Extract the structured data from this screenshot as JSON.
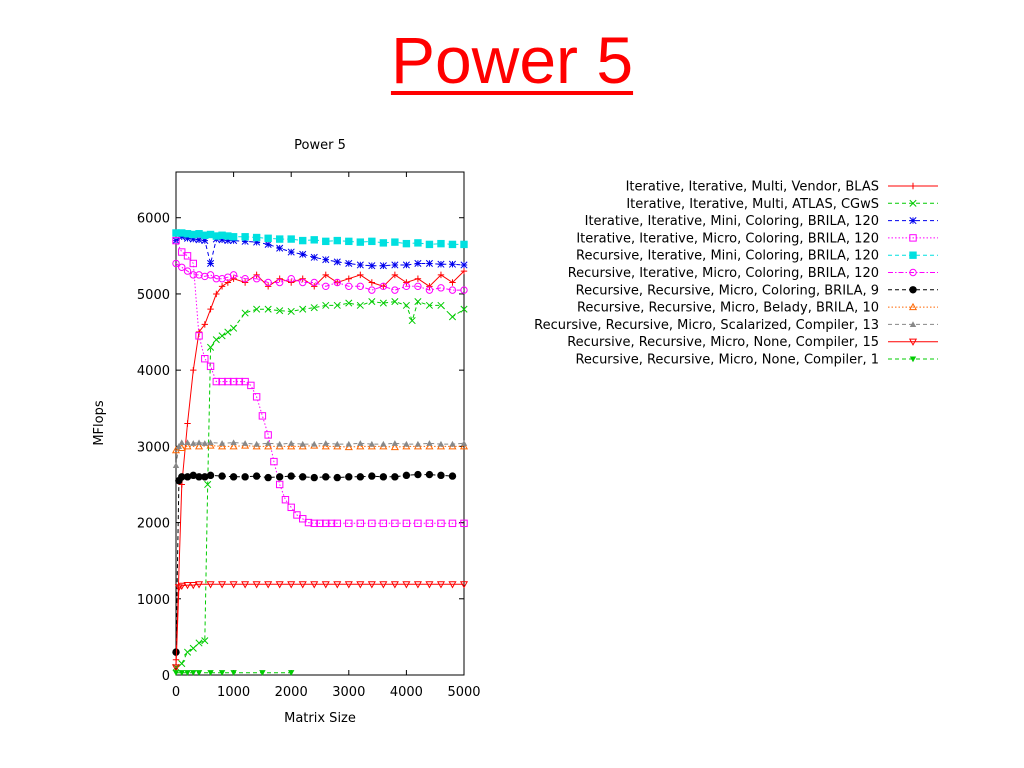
{
  "slide": {
    "title": "Power 5"
  },
  "chart_data": {
    "type": "line",
    "title": "Power 5",
    "xlabel": "Matrix Size",
    "ylabel": "MFlops",
    "xlim": [
      0,
      5000
    ],
    "ylim": [
      0,
      6600
    ],
    "xticks": [
      0,
      1000,
      2000,
      3000,
      4000,
      5000
    ],
    "yticks": [
      0,
      1000,
      2000,
      3000,
      4000,
      5000,
      6000
    ],
    "legend_position": "right, outside plot",
    "grid": false,
    "series": [
      {
        "name": "Iterative, Iterative, Multi, Vendor, BLAS",
        "color": "#ff0000",
        "marker": "plus",
        "dash": "solid",
        "x": [
          0,
          100,
          200,
          300,
          400,
          500,
          600,
          700,
          800,
          900,
          1000,
          1200,
          1400,
          1600,
          1800,
          2000,
          2200,
          2400,
          2600,
          2800,
          3000,
          3200,
          3400,
          3600,
          3800,
          4000,
          4200,
          4400,
          4600,
          4800,
          5000
        ],
        "y": [
          200,
          2500,
          3300,
          4000,
          4500,
          4600,
          4800,
          5000,
          5100,
          5150,
          5200,
          5150,
          5250,
          5100,
          5200,
          5150,
          5200,
          5100,
          5250,
          5150,
          5200,
          5250,
          5150,
          5100,
          5250,
          5150,
          5200,
          5100,
          5250,
          5150,
          5300
        ]
      },
      {
        "name": "Iterative, Iterative, Multi, ATLAS, CGwS",
        "color": "#00cc00",
        "marker": "x",
        "dash": "dashed",
        "x": [
          0,
          100,
          200,
          300,
          400,
          500,
          550,
          600,
          700,
          800,
          900,
          1000,
          1200,
          1400,
          1600,
          1800,
          2000,
          2200,
          2400,
          2600,
          2800,
          3000,
          3200,
          3400,
          3600,
          3800,
          4000,
          4100,
          4200,
          4400,
          4600,
          4800,
          5000
        ],
        "y": [
          100,
          150,
          300,
          350,
          420,
          450,
          2500,
          4300,
          4400,
          4450,
          4500,
          4550,
          4750,
          4800,
          4800,
          4780,
          4770,
          4800,
          4820,
          4850,
          4850,
          4880,
          4850,
          4900,
          4880,
          4900,
          4850,
          4650,
          4900,
          4850,
          4850,
          4700,
          4800
        ]
      },
      {
        "name": "Iterative, Iterative, Mini, Coloring, BRILA, 120",
        "color": "#0000ee",
        "marker": "star",
        "dash": "dashed",
        "x": [
          0,
          100,
          200,
          300,
          400,
          500,
          600,
          700,
          800,
          900,
          1000,
          1200,
          1400,
          1600,
          1800,
          2000,
          2200,
          2400,
          2600,
          2800,
          3000,
          3200,
          3400,
          3600,
          3800,
          4000,
          4200,
          4400,
          4600,
          4800,
          5000
        ],
        "y": [
          5700,
          5750,
          5730,
          5720,
          5710,
          5700,
          5400,
          5720,
          5710,
          5700,
          5700,
          5690,
          5680,
          5650,
          5600,
          5550,
          5520,
          5480,
          5450,
          5420,
          5400,
          5380,
          5370,
          5370,
          5380,
          5380,
          5400,
          5400,
          5390,
          5390,
          5380
        ]
      },
      {
        "name": "Iterative, Iterative, Micro, Coloring, BRILA, 120",
        "color": "#ff00ff",
        "marker": "square",
        "dash": "dotted",
        "x": [
          0,
          100,
          200,
          300,
          400,
          500,
          600,
          700,
          800,
          900,
          1000,
          1100,
          1200,
          1300,
          1400,
          1500,
          1600,
          1700,
          1800,
          1900,
          2000,
          2100,
          2200,
          2300,
          2400,
          2500,
          2600,
          2700,
          2800,
          3000,
          3200,
          3400,
          3600,
          3800,
          4000,
          4200,
          4400,
          4600,
          4800,
          5000
        ],
        "y": [
          5700,
          5550,
          5500,
          5400,
          4450,
          4150,
          4050,
          3850,
          3850,
          3850,
          3850,
          3850,
          3850,
          3800,
          3650,
          3400,
          3150,
          2800,
          2500,
          2300,
          2200,
          2100,
          2050,
          2000,
          1990,
          1990,
          1990,
          1990,
          1990,
          1990,
          1990,
          1990,
          1990,
          1990,
          1990,
          1990,
          1990,
          1990,
          1990,
          1990
        ]
      },
      {
        "name": "Recursive, Iterative, Mini, Coloring, BRILA, 120",
        "color": "#00e0e0",
        "marker": "filled-square",
        "dash": "dashed",
        "x": [
          0,
          100,
          200,
          300,
          400,
          500,
          600,
          700,
          800,
          900,
          1000,
          1200,
          1400,
          1600,
          1800,
          2000,
          2200,
          2400,
          2600,
          2800,
          3000,
          3200,
          3400,
          3600,
          3800,
          4000,
          4200,
          4400,
          4600,
          4800,
          5000
        ],
        "y": [
          5800,
          5800,
          5790,
          5780,
          5790,
          5770,
          5780,
          5760,
          5770,
          5760,
          5750,
          5750,
          5740,
          5730,
          5720,
          5720,
          5700,
          5710,
          5690,
          5700,
          5690,
          5680,
          5690,
          5670,
          5680,
          5660,
          5670,
          5650,
          5660,
          5650,
          5650
        ]
      },
      {
        "name": "Recursive, Iterative, Micro, Coloring, BRILA, 120",
        "color": "#ff00ff",
        "marker": "circle",
        "dash": "dashdot",
        "x": [
          0,
          100,
          200,
          300,
          400,
          500,
          600,
          700,
          800,
          900,
          1000,
          1200,
          1400,
          1600,
          1800,
          2000,
          2200,
          2400,
          2600,
          2800,
          3000,
          3200,
          3400,
          3600,
          3800,
          4000,
          4200,
          4400,
          4600,
          4800,
          5000
        ],
        "y": [
          5400,
          5350,
          5300,
          5250,
          5250,
          5230,
          5250,
          5200,
          5200,
          5220,
          5250,
          5200,
          5200,
          5150,
          5150,
          5200,
          5150,
          5150,
          5100,
          5150,
          5100,
          5100,
          5050,
          5100,
          5050,
          5100,
          5100,
          5050,
          5080,
          5050,
          5050
        ]
      },
      {
        "name": "Recursive, Recursive, Micro, Coloring, BRILA, 9",
        "color": "#000000",
        "marker": "filled-circle",
        "dash": "dashed",
        "x": [
          0,
          50,
          100,
          200,
          300,
          400,
          500,
          600,
          800,
          1000,
          1200,
          1400,
          1600,
          1800,
          2000,
          2200,
          2400,
          2600,
          2800,
          3000,
          3200,
          3400,
          3600,
          3800,
          4000,
          4200,
          4400,
          4600,
          4800
        ],
        "y": [
          300,
          2550,
          2600,
          2600,
          2620,
          2600,
          2600,
          2620,
          2610,
          2600,
          2600,
          2610,
          2590,
          2600,
          2610,
          2600,
          2590,
          2600,
          2590,
          2600,
          2600,
          2610,
          2600,
          2600,
          2620,
          2630,
          2630,
          2620,
          2610
        ]
      },
      {
        "name": "Recursive, Recursive, Micro, Belady, BRILA, 10",
        "color": "#ff6600",
        "marker": "triangle",
        "dash": "dotted",
        "x": [
          0,
          100,
          200,
          400,
          600,
          800,
          1000,
          1200,
          1400,
          1600,
          1800,
          2000,
          2200,
          2400,
          2600,
          2800,
          3000,
          3200,
          3400,
          3600,
          3800,
          4000,
          4200,
          4400,
          4600,
          4800,
          5000
        ],
        "y": [
          2950,
          2980,
          3000,
          3000,
          3010,
          3000,
          3000,
          3010,
          3000,
          3000,
          3000,
          3000,
          3000,
          3010,
          3000,
          3000,
          2990,
          3000,
          3000,
          3000,
          2990,
          3000,
          3000,
          3000,
          3000,
          3000,
          3000
        ]
      },
      {
        "name": "Recursive, Recursive, Micro, Scalarized, Compiler, 13",
        "color": "#888888",
        "marker": "filled-triangle",
        "dash": "dashed",
        "x": [
          0,
          50,
          100,
          200,
          300,
          400,
          500,
          600,
          800,
          1000,
          1200,
          1400,
          1600,
          1800,
          2000,
          2200,
          2400,
          2600,
          2800,
          3000,
          3200,
          3400,
          3600,
          3800,
          4000,
          4200,
          4400,
          4600,
          4800,
          5000
        ],
        "y": [
          2750,
          3000,
          3050,
          3050,
          3040,
          3050,
          3040,
          3050,
          3040,
          3050,
          3040,
          3030,
          3040,
          3030,
          3040,
          3030,
          3030,
          3040,
          3030,
          3030,
          3040,
          3030,
          3030,
          3040,
          3030,
          3030,
          3040,
          3030,
          3030,
          3040
        ]
      },
      {
        "name": "Recursive, Recursive, Micro, None, Compiler, 15",
        "color": "#ff0000",
        "marker": "inverted-triangle",
        "dash": "solid",
        "x": [
          0,
          50,
          100,
          200,
          300,
          400,
          600,
          800,
          1000,
          1200,
          1400,
          1600,
          1800,
          2000,
          2200,
          2400,
          2600,
          2800,
          3000,
          3200,
          3400,
          3600,
          3800,
          4000,
          4200,
          4400,
          4600,
          4800,
          5000
        ],
        "y": [
          100,
          1150,
          1170,
          1180,
          1180,
          1190,
          1190,
          1190,
          1190,
          1190,
          1190,
          1190,
          1190,
          1190,
          1190,
          1190,
          1190,
          1190,
          1190,
          1190,
          1190,
          1190,
          1190,
          1190,
          1190,
          1190,
          1190,
          1190,
          1190
        ]
      },
      {
        "name": "Recursive, Recursive, Micro, None, Compiler, 1",
        "color": "#00cc00",
        "marker": "filled-inverted-triangle",
        "dash": "dashed",
        "x": [
          0,
          100,
          200,
          300,
          400,
          600,
          800,
          1000,
          1500,
          2000
        ],
        "y": [
          30,
          30,
          30,
          30,
          30,
          30,
          30,
          30,
          30,
          30
        ]
      }
    ]
  }
}
